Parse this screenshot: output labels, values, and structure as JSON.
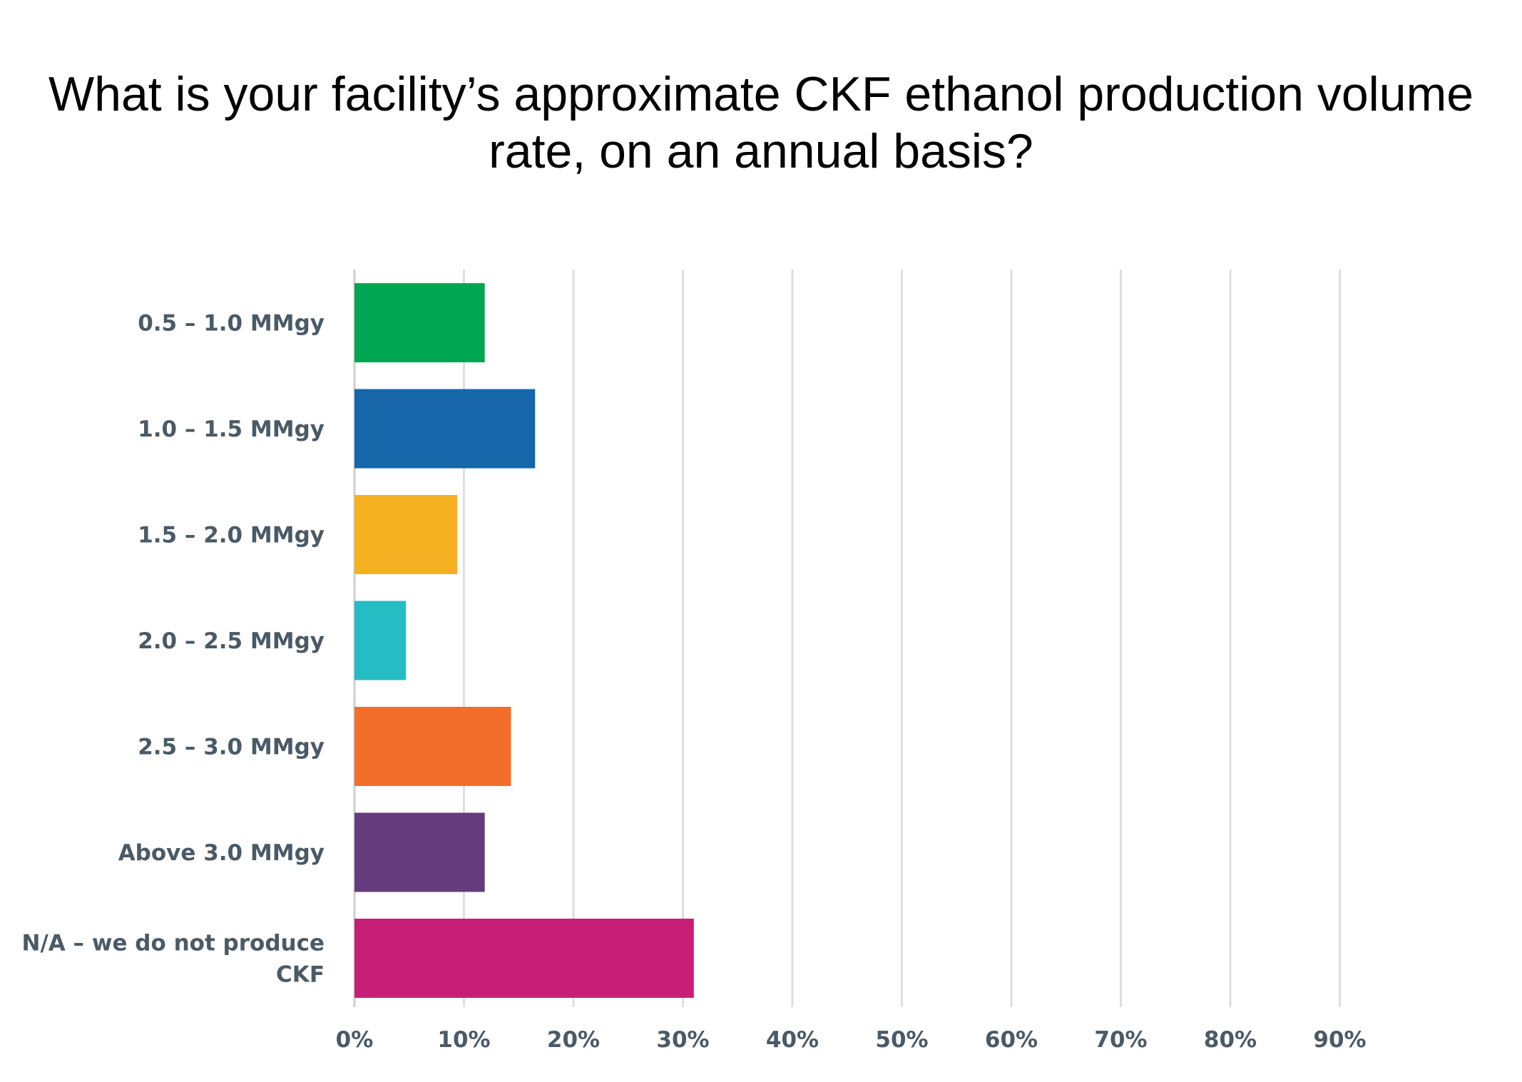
{
  "chart_data": {
    "type": "bar",
    "orientation": "horizontal",
    "title": "What is your facility’s approximate CKF ethanol production volume rate, on an annual basis?",
    "title_lines": [
      "What is your facility’s approximate CKF ethanol production volume",
      "rate, on an annual basis?"
    ],
    "categories": [
      "0.5 – 1.0 MMgy",
      "1.0 – 1.5 MMgy",
      "1.5 – 2.0 MMgy",
      "2.0 – 2.5 MMgy",
      "2.5 – 3.0 MMgy",
      "Above 3.0 MMgy",
      "N/A – we do not produce CKF"
    ],
    "category_label_lines": [
      [
        "0.5 – 1.0 MMgy"
      ],
      [
        "1.0 – 1.5 MMgy"
      ],
      [
        "1.5 – 2.0 MMgy"
      ],
      [
        "2.0 – 2.5 MMgy"
      ],
      [
        "2.5 – 3.0 MMgy"
      ],
      [
        "Above 3.0 MMgy"
      ],
      [
        "N/A – we do not produce",
        "CKF"
      ]
    ],
    "values": [
      11.9,
      16.5,
      9.4,
      4.7,
      14.3,
      11.9,
      31.0
    ],
    "colors": [
      "#00a651",
      "#1666a9",
      "#f4b020",
      "#25bcc4",
      "#f26e2b",
      "#643b7c",
      "#c71f76"
    ],
    "xlim": [
      0,
      90
    ],
    "x_ticks": [
      0,
      10,
      20,
      30,
      40,
      50,
      60,
      70,
      80,
      90
    ],
    "x_tick_labels": [
      "0%",
      "10%",
      "20%",
      "30%",
      "40%",
      "50%",
      "60%",
      "70%",
      "80%",
      "90%"
    ],
    "xlabel": "",
    "ylabel": "",
    "grid": true,
    "legend": "none"
  }
}
